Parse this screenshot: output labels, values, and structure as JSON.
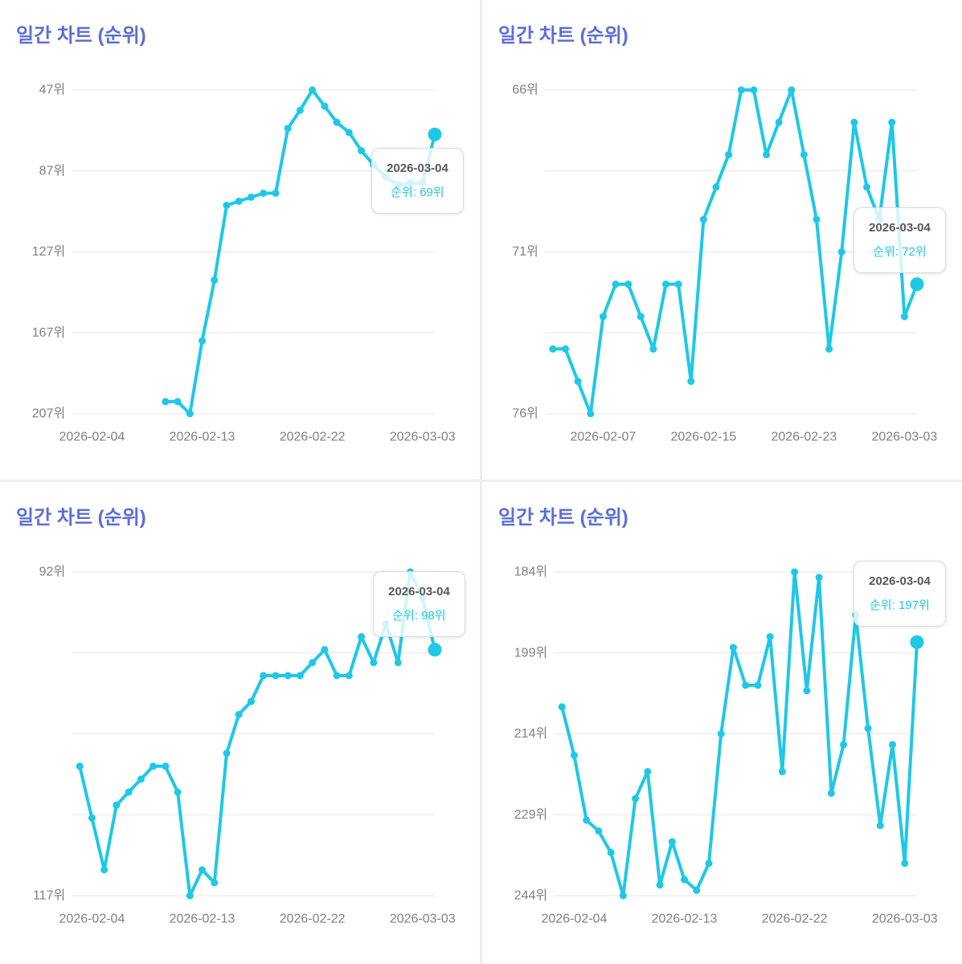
{
  "theme": {
    "title_color": "#5b6ed8",
    "line_color": "#1ec8e6"
  },
  "chart_data": [
    {
      "type": "line",
      "title": "일간 차트 (순위)",
      "xlim": [
        "2026-02-03",
        "2026-03-04"
      ],
      "x_ticks": [
        "2026-02-04",
        "2026-02-13",
        "2026-02-22",
        "2026-03-03"
      ],
      "ylim": [
        47,
        207
      ],
      "y_reversed": true,
      "y_ticks": [
        47,
        87,
        127,
        167,
        207
      ],
      "y_tick_labels": [
        "47위",
        "87위",
        "127위",
        "167위",
        "207위"
      ],
      "grid": true,
      "x": [
        "2026-02-10",
        "2026-02-11",
        "2026-02-12",
        "2026-02-13",
        "2026-02-14",
        "2026-02-15",
        "2026-02-16",
        "2026-02-17",
        "2026-02-18",
        "2026-02-19",
        "2026-02-20",
        "2026-02-21",
        "2026-02-22",
        "2026-02-23",
        "2026-02-24",
        "2026-02-25",
        "2026-02-26",
        "2026-02-27",
        "2026-02-28",
        "2026-03-01",
        "2026-03-02",
        "2026-03-03",
        "2026-03-04"
      ],
      "values": [
        201,
        201,
        207,
        171,
        141,
        104,
        102,
        100,
        98,
        98,
        66,
        57,
        47,
        55,
        63,
        68,
        77,
        84,
        90,
        94,
        93,
        93,
        69
      ],
      "tooltip": {
        "date": "2026-03-04",
        "label": "순위: 69위"
      }
    },
    {
      "type": "line",
      "title": "일간 차트 (순위)",
      "xlim": [
        "2026-02-03",
        "2026-03-04"
      ],
      "x_ticks": [
        "2026-02-07",
        "2026-02-15",
        "2026-02-23",
        "2026-03-03"
      ],
      "ylim": [
        66,
        76
      ],
      "y_reversed": true,
      "y_ticks": [
        66,
        71,
        76
      ],
      "y_tick_labels": [
        "66위",
        "71위",
        "76위"
      ],
      "grid": true,
      "x": [
        "2026-02-03",
        "2026-02-04",
        "2026-02-05",
        "2026-02-06",
        "2026-02-07",
        "2026-02-08",
        "2026-02-09",
        "2026-02-10",
        "2026-02-11",
        "2026-02-12",
        "2026-02-13",
        "2026-02-14",
        "2026-02-15",
        "2026-02-16",
        "2026-02-17",
        "2026-02-18",
        "2026-02-19",
        "2026-02-20",
        "2026-02-21",
        "2026-02-22",
        "2026-02-23",
        "2026-02-24",
        "2026-02-25",
        "2026-02-26",
        "2026-02-27",
        "2026-02-28",
        "2026-03-01",
        "2026-03-02",
        "2026-03-03",
        "2026-03-04"
      ],
      "values": [
        74,
        74,
        75,
        76,
        73,
        72,
        72,
        73,
        74,
        72,
        72,
        75,
        70,
        69,
        68,
        66,
        66,
        68,
        67,
        66,
        68,
        70,
        74,
        71,
        67,
        69,
        70,
        67,
        73,
        72
      ],
      "tooltip": {
        "date": "2026-03-04",
        "label": "순위: 72위"
      }
    },
    {
      "type": "line",
      "title": "일간 차트 (순위)",
      "xlim": [
        "2026-02-03",
        "2026-03-04"
      ],
      "x_ticks": [
        "2026-02-04",
        "2026-02-13",
        "2026-02-22",
        "2026-03-03"
      ],
      "ylim": [
        92,
        117
      ],
      "y_reversed": true,
      "y_ticks": [
        92,
        117
      ],
      "y_tick_labels": [
        "92위",
        "117위"
      ],
      "grid": true,
      "x": [
        "2026-02-03",
        "2026-02-04",
        "2026-02-05",
        "2026-02-06",
        "2026-02-07",
        "2026-02-08",
        "2026-02-09",
        "2026-02-10",
        "2026-02-11",
        "2026-02-12",
        "2026-02-13",
        "2026-02-14",
        "2026-02-15",
        "2026-02-16",
        "2026-02-17",
        "2026-02-18",
        "2026-02-19",
        "2026-02-20",
        "2026-02-21",
        "2026-02-22",
        "2026-02-23",
        "2026-02-24",
        "2026-02-25",
        "2026-02-26",
        "2026-02-27",
        "2026-02-28",
        "2026-03-01",
        "2026-03-02",
        "2026-03-03",
        "2026-03-04"
      ],
      "values": [
        107,
        111,
        115,
        110,
        109,
        108,
        107,
        107,
        109,
        117,
        115,
        116,
        106,
        103,
        102,
        100,
        100,
        100,
        100,
        99,
        98,
        100,
        100,
        97,
        99,
        96,
        99,
        92,
        94,
        98
      ],
      "tooltip": {
        "date": "2026-03-04",
        "label": "순위: 98위"
      }
    },
    {
      "type": "line",
      "title": "일간 차트 (순위)",
      "xlim": [
        "2026-02-03",
        "2026-03-04"
      ],
      "x_ticks": [
        "2026-02-04",
        "2026-02-13",
        "2026-02-22",
        "2026-03-03"
      ],
      "ylim": [
        184,
        244
      ],
      "y_reversed": true,
      "y_ticks": [
        184,
        199,
        214,
        229,
        244
      ],
      "y_tick_labels": [
        "184위",
        "199위",
        "214위",
        "229위",
        "244위"
      ],
      "grid": true,
      "x": [
        "2026-02-03",
        "2026-02-04",
        "2026-02-05",
        "2026-02-06",
        "2026-02-07",
        "2026-02-08",
        "2026-02-09",
        "2026-02-10",
        "2026-02-11",
        "2026-02-12",
        "2026-02-13",
        "2026-02-14",
        "2026-02-15",
        "2026-02-16",
        "2026-02-17",
        "2026-02-18",
        "2026-02-19",
        "2026-02-20",
        "2026-02-21",
        "2026-02-22",
        "2026-02-23",
        "2026-02-24",
        "2026-02-25",
        "2026-02-26",
        "2026-02-27",
        "2026-02-28",
        "2026-03-01",
        "2026-03-02",
        "2026-03-03",
        "2026-03-04"
      ],
      "values": [
        209,
        218,
        230,
        232,
        236,
        244,
        226,
        221,
        242,
        234,
        241,
        243,
        238,
        214,
        198,
        205,
        205,
        196,
        221,
        184,
        206,
        185,
        225,
        216,
        192,
        213,
        231,
        216,
        238,
        197
      ],
      "tooltip": {
        "date": "2026-03-04",
        "label": "순위: 197위"
      }
    }
  ]
}
